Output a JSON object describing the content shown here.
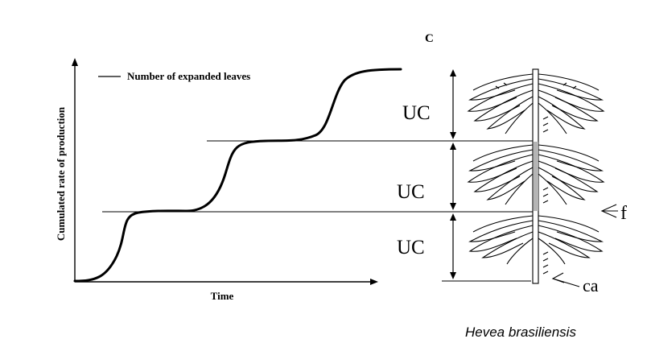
{
  "figure": {
    "panel_label": "C",
    "legend_label": "Number of expanded leaves",
    "y_axis_label": "Cumulated rate of production",
    "x_axis_label": "Time",
    "unit_labels": [
      "UC",
      "UC",
      "UC"
    ],
    "annotation_f": "f",
    "annotation_ca": "ca",
    "species": "Hevea brasiliensis"
  }
}
